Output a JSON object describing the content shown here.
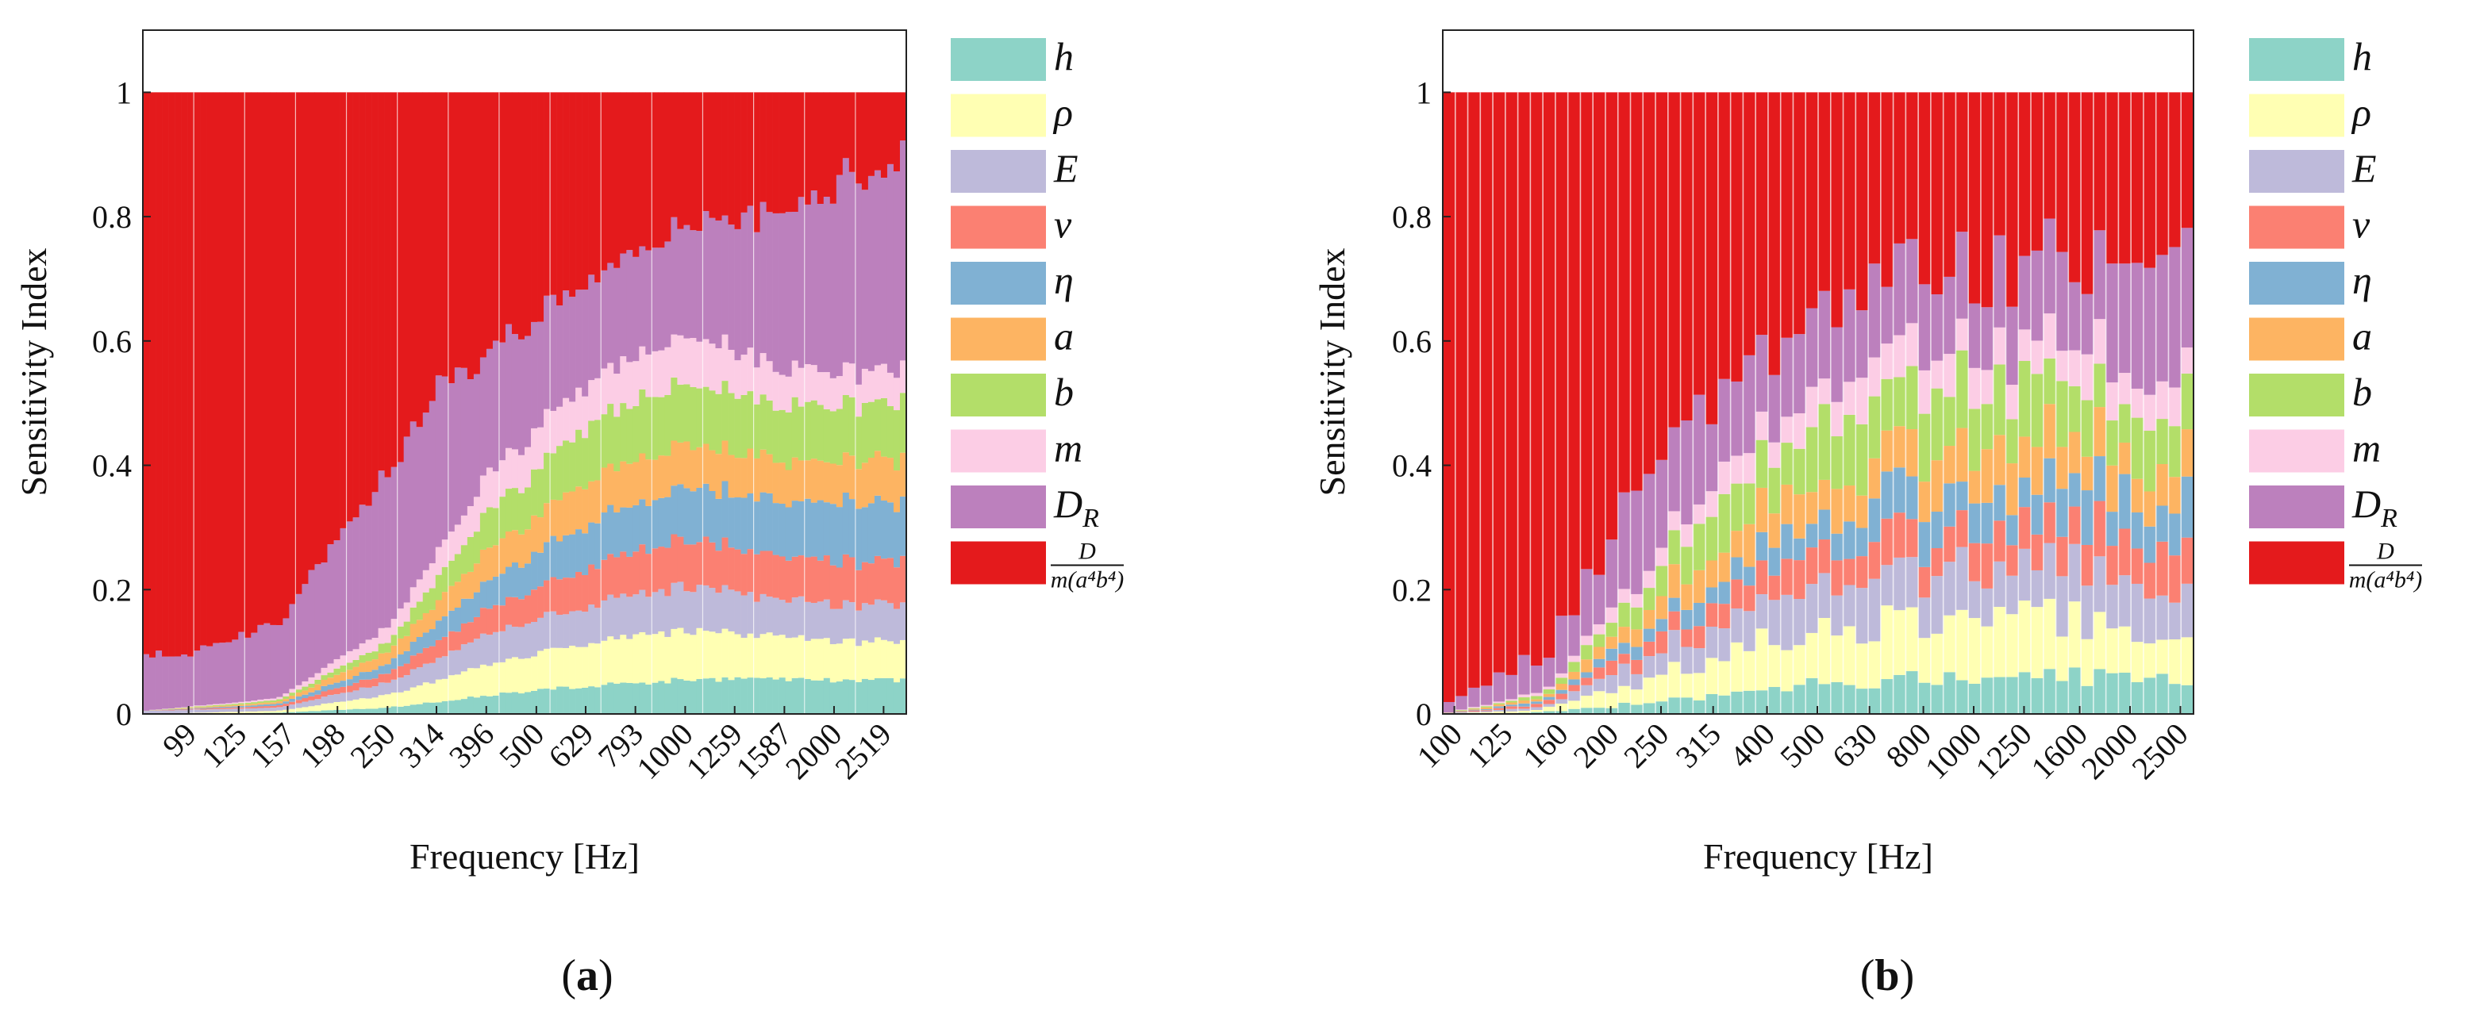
{
  "legend": [
    {
      "key": "h",
      "label": "h",
      "color": "#8dd3c7"
    },
    {
      "key": "rho",
      "label": "ρ",
      "color": "#ffffb3"
    },
    {
      "key": "E",
      "label": "E",
      "color": "#bebada"
    },
    {
      "key": "nu",
      "label": "ν",
      "color": "#fb8072"
    },
    {
      "key": "eta",
      "label": "η",
      "color": "#80b1d3"
    },
    {
      "key": "a",
      "label": "a",
      "color": "#fdb462"
    },
    {
      "key": "b",
      "label": "b",
      "color": "#b3de69"
    },
    {
      "key": "m",
      "label": "m",
      "color": "#fccde5"
    },
    {
      "key": "DR",
      "label": "D",
      "sub": "R",
      "color": "#bc80bd"
    },
    {
      "key": "D",
      "label_num": "D",
      "label_den": "m(a⁴b⁴)",
      "color": "#e41a1c"
    }
  ],
  "chart_data": [
    {
      "panel": "a",
      "caption": "(a)",
      "type": "bar",
      "stacked": true,
      "xlabel": "Frequency [Hz]",
      "ylabel": "Sensitivity Index",
      "ylim": [
        0,
        1.1
      ],
      "yticks": [
        0,
        0.2,
        0.4,
        0.6,
        0.8,
        1
      ],
      "ytick_labels": [
        "0",
        "0.2",
        "0.4",
        "0.6",
        "0.8",
        "1"
      ],
      "xscale": "log",
      "x_range": [
        80,
        2800
      ],
      "bar_count": 120,
      "xtick_labels": [
        "99",
        "125",
        "157",
        "198",
        "250",
        "314",
        "396",
        "500",
        "629",
        "793",
        "1000",
        "1259",
        "1587",
        "2000",
        "2519"
      ],
      "xtick_values": [
        99,
        125,
        157,
        198,
        250,
        314,
        396,
        500,
        629,
        793,
        1000,
        1259,
        1587,
        2000,
        2519
      ],
      "series_profile": {
        "h": {
          "freq": [
            80,
            150,
            250,
            400,
            630,
            1000,
            1600,
            2800
          ],
          "value": [
            0.0,
            0.002,
            0.01,
            0.03,
            0.045,
            0.055,
            0.055,
            0.055
          ]
        },
        "rho": {
          "freq": [
            80,
            150,
            250,
            400,
            630,
            1000,
            1600,
            2800
          ],
          "value": [
            0.0,
            0.003,
            0.02,
            0.05,
            0.07,
            0.08,
            0.065,
            0.06
          ]
        },
        "E": {
          "freq": [
            80,
            150,
            250,
            400,
            630,
            1000,
            1600,
            2800
          ],
          "value": [
            0.005,
            0.005,
            0.02,
            0.05,
            0.06,
            0.07,
            0.06,
            0.06
          ]
        },
        "nu": {
          "freq": [
            80,
            150,
            250,
            400,
            630,
            1000,
            1600,
            2800
          ],
          "value": [
            0.0,
            0.003,
            0.015,
            0.04,
            0.06,
            0.075,
            0.07,
            0.07
          ]
        },
        "eta": {
          "freq": [
            80,
            150,
            250,
            400,
            630,
            1000,
            1600,
            2800
          ],
          "value": [
            0.0,
            0.003,
            0.015,
            0.045,
            0.07,
            0.085,
            0.09,
            0.095
          ]
        },
        "a": {
          "freq": [
            80,
            150,
            250,
            400,
            630,
            1000,
            1600,
            2800
          ],
          "value": [
            0.0,
            0.003,
            0.02,
            0.05,
            0.07,
            0.07,
            0.065,
            0.07
          ]
        },
        "b": {
          "freq": [
            80,
            150,
            250,
            400,
            630,
            1000,
            1600,
            2800
          ],
          "value": [
            0.0,
            0.003,
            0.015,
            0.06,
            0.09,
            0.1,
            0.09,
            0.09
          ]
        },
        "m": {
          "freq": [
            80,
            150,
            250,
            400,
            630,
            1000,
            1600,
            2800
          ],
          "value": [
            0.0,
            0.003,
            0.025,
            0.06,
            0.07,
            0.075,
            0.06,
            0.05
          ]
        },
        "DR": {
          "freq": [
            80,
            100,
            150,
            200,
            250,
            315,
            400,
            630,
            1000,
            1600,
            2000,
            2800
          ],
          "value": [
            0.09,
            0.085,
            0.12,
            0.2,
            0.25,
            0.26,
            0.2,
            0.16,
            0.18,
            0.25,
            0.3,
            0.33
          ]
        },
        "D": "remainder to 1"
      }
    },
    {
      "panel": "b",
      "caption": "(b)",
      "type": "bar",
      "stacked": true,
      "xlabel": "Frequency [Hz]",
      "ylabel": "Sensitivity Index",
      "ylim": [
        0,
        1.1
      ],
      "yticks": [
        0,
        0.2,
        0.4,
        0.6,
        0.8,
        1
      ],
      "ytick_labels": [
        "0",
        "0.2",
        "0.4",
        "0.6",
        "0.8",
        "1"
      ],
      "xscale": "log",
      "x_range": [
        95,
        2650
      ],
      "bar_count": 60,
      "xtick_labels": [
        "100",
        "125",
        "160",
        "200",
        "250",
        "315",
        "400",
        "500",
        "630",
        "800",
        "1000",
        "1250",
        "1600",
        "2000",
        "2500"
      ],
      "xtick_values": [
        100,
        125,
        160,
        200,
        250,
        315,
        400,
        500,
        630,
        800,
        1000,
        1250,
        1600,
        2000,
        2500
      ],
      "series_profile": {
        "h": {
          "freq": [
            95,
            150,
            250,
            400,
            630,
            1000,
            1600,
            2650
          ],
          "value": [
            0.0,
            0.003,
            0.02,
            0.04,
            0.055,
            0.06,
            0.06,
            0.05
          ]
        },
        "rho": {
          "freq": [
            95,
            150,
            250,
            400,
            630,
            1000,
            1600,
            2650
          ],
          "value": [
            0.0,
            0.005,
            0.04,
            0.08,
            0.1,
            0.1,
            0.09,
            0.06
          ]
        },
        "E": {
          "freq": [
            95,
            150,
            250,
            400,
            630,
            1000,
            1600,
            2650
          ],
          "value": [
            0.0,
            0.005,
            0.04,
            0.07,
            0.08,
            0.08,
            0.08,
            0.07
          ]
        },
        "nu": {
          "freq": [
            95,
            150,
            250,
            400,
            630,
            1000,
            1600,
            2650
          ],
          "value": [
            0.0,
            0.005,
            0.03,
            0.05,
            0.06,
            0.06,
            0.07,
            0.07
          ]
        },
        "eta": {
          "freq": [
            95,
            150,
            250,
            400,
            630,
            1000,
            1600,
            2650
          ],
          "value": [
            0.0,
            0.005,
            0.025,
            0.04,
            0.06,
            0.06,
            0.07,
            0.08
          ]
        },
        "a": {
          "freq": [
            95,
            150,
            250,
            400,
            630,
            1000,
            1600,
            2650
          ],
          "value": [
            0.0,
            0.005,
            0.04,
            0.06,
            0.07,
            0.07,
            0.07,
            0.06
          ]
        },
        "b": {
          "freq": [
            95,
            150,
            250,
            400,
            630,
            1000,
            1600,
            2650
          ],
          "value": [
            0.0,
            0.005,
            0.05,
            0.09,
            0.1,
            0.1,
            0.09,
            0.08
          ]
        },
        "m": {
          "freq": [
            95,
            150,
            250,
            400,
            630,
            1000,
            1600,
            2650
          ],
          "value": [
            0.0,
            0.005,
            0.03,
            0.05,
            0.06,
            0.06,
            0.06,
            0.05
          ]
        },
        "DR": {
          "freq": [
            95,
            150,
            200,
            250,
            400,
            630,
            1000,
            1600,
            2650
          ],
          "value": [
            0.02,
            0.06,
            0.12,
            0.15,
            0.12,
            0.12,
            0.12,
            0.13,
            0.2
          ]
        },
        "D": "remainder to 1"
      }
    }
  ]
}
